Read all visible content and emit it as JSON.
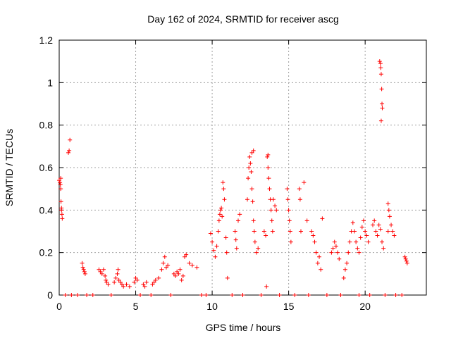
{
  "chart_data": {
    "type": "scatter",
    "title": "Day 162 of 2024, SRMTID for receiver ascg",
    "xlabel": "GPS time / hours",
    "ylabel": "SRMTID / TECUs",
    "xlim": [
      0,
      24
    ],
    "ylim": [
      0,
      1.2
    ],
    "xticks": [
      "0",
      "5",
      "10",
      "15",
      "20"
    ],
    "yticks": [
      "0",
      "0.2",
      "0.4",
      "0.6",
      "0.8",
      "1",
      "1.2"
    ],
    "grid": true,
    "marker": "+",
    "color": "#ff0000",
    "series": [
      {
        "name": "SRMTID",
        "points": [
          [
            0.0,
            0.54
          ],
          [
            0.05,
            0.53
          ],
          [
            0.08,
            0.52
          ],
          [
            0.1,
            0.5
          ],
          [
            0.12,
            0.44
          ],
          [
            0.15,
            0.4
          ],
          [
            0.18,
            0.38
          ],
          [
            0.2,
            0.36
          ],
          [
            0.1,
            0.55
          ],
          [
            0.15,
            0.41
          ],
          [
            0.6,
            0.67
          ],
          [
            0.65,
            0.68
          ],
          [
            0.7,
            0.73
          ],
          [
            1.5,
            0.15
          ],
          [
            1.55,
            0.13
          ],
          [
            1.6,
            0.12
          ],
          [
            1.65,
            0.11
          ],
          [
            1.7,
            0.1
          ],
          [
            2.6,
            0.12
          ],
          [
            2.7,
            0.11
          ],
          [
            2.8,
            0.1
          ],
          [
            2.9,
            0.12
          ],
          [
            3.0,
            0.09
          ],
          [
            3.05,
            0.07
          ],
          [
            3.1,
            0.06
          ],
          [
            3.2,
            0.05
          ],
          [
            3.6,
            0.06
          ],
          [
            3.7,
            0.08
          ],
          [
            3.8,
            0.1
          ],
          [
            3.85,
            0.12
          ],
          [
            3.9,
            0.07
          ],
          [
            4.0,
            0.06
          ],
          [
            4.1,
            0.05
          ],
          [
            4.2,
            0.04
          ],
          [
            4.4,
            0.05
          ],
          [
            4.6,
            0.04
          ],
          [
            4.9,
            0.06
          ],
          [
            5.0,
            0.08
          ],
          [
            5.1,
            0.07
          ],
          [
            5.5,
            0.05
          ],
          [
            5.6,
            0.04
          ],
          [
            5.7,
            0.06
          ],
          [
            6.1,
            0.05
          ],
          [
            6.2,
            0.06
          ],
          [
            6.3,
            0.07
          ],
          [
            6.5,
            0.08
          ],
          [
            6.7,
            0.12
          ],
          [
            6.8,
            0.15
          ],
          [
            6.9,
            0.18
          ],
          [
            7.0,
            0.13
          ],
          [
            7.1,
            0.14
          ],
          [
            7.5,
            0.1
          ],
          [
            7.6,
            0.09
          ],
          [
            7.7,
            0.11
          ],
          [
            7.8,
            0.1
          ],
          [
            7.9,
            0.12
          ],
          [
            8.0,
            0.07
          ],
          [
            8.1,
            0.09
          ],
          [
            8.2,
            0.18
          ],
          [
            8.3,
            0.19
          ],
          [
            8.5,
            0.15
          ],
          [
            8.7,
            0.14
          ],
          [
            9.0,
            0.13
          ],
          [
            9.9,
            0.29
          ],
          [
            10.0,
            0.25
          ],
          [
            10.1,
            0.21
          ],
          [
            10.2,
            0.18
          ],
          [
            10.3,
            0.23
          ],
          [
            10.4,
            0.3
          ],
          [
            10.45,
            0.35
          ],
          [
            10.5,
            0.38
          ],
          [
            10.55,
            0.4
          ],
          [
            10.6,
            0.41
          ],
          [
            10.65,
            0.37
          ],
          [
            10.7,
            0.53
          ],
          [
            10.75,
            0.5
          ],
          [
            10.8,
            0.45
          ],
          [
            10.9,
            0.27
          ],
          [
            10.95,
            0.2
          ],
          [
            11.0,
            0.08
          ],
          [
            11.5,
            0.3
          ],
          [
            11.55,
            0.26
          ],
          [
            11.6,
            0.22
          ],
          [
            11.7,
            0.35
          ],
          [
            11.8,
            0.38
          ],
          [
            12.3,
            0.45
          ],
          [
            12.35,
            0.55
          ],
          [
            12.4,
            0.6
          ],
          [
            12.45,
            0.65
          ],
          [
            12.5,
            0.62
          ],
          [
            12.55,
            0.58
          ],
          [
            12.6,
            0.5
          ],
          [
            12.65,
            0.44
          ],
          [
            12.7,
            0.35
          ],
          [
            12.75,
            0.3
          ],
          [
            12.8,
            0.25
          ],
          [
            12.9,
            0.2
          ],
          [
            13.0,
            0.22
          ],
          [
            12.7,
            0.68
          ],
          [
            12.6,
            0.67
          ],
          [
            13.4,
            0.3
          ],
          [
            13.5,
            0.28
          ],
          [
            13.6,
            0.65
          ],
          [
            13.65,
            0.6
          ],
          [
            13.7,
            0.55
          ],
          [
            13.75,
            0.5
          ],
          [
            13.8,
            0.45
          ],
          [
            13.85,
            0.4
          ],
          [
            13.9,
            0.35
          ],
          [
            13.95,
            0.3
          ],
          [
            14.0,
            0.45
          ],
          [
            14.1,
            0.42
          ],
          [
            14.2,
            0.4
          ],
          [
            13.55,
            0.04
          ],
          [
            13.65,
            0.66
          ],
          [
            14.9,
            0.5
          ],
          [
            14.95,
            0.45
          ],
          [
            15.0,
            0.4
          ],
          [
            15.05,
            0.35
          ],
          [
            15.1,
            0.3
          ],
          [
            15.15,
            0.25
          ],
          [
            15.7,
            0.5
          ],
          [
            15.75,
            0.45
          ],
          [
            15.8,
            0.3
          ],
          [
            16.0,
            0.53
          ],
          [
            16.2,
            0.35
          ],
          [
            16.5,
            0.3
          ],
          [
            16.6,
            0.28
          ],
          [
            16.7,
            0.25
          ],
          [
            16.8,
            0.2
          ],
          [
            16.9,
            0.15
          ],
          [
            17.0,
            0.18
          ],
          [
            17.1,
            0.12
          ],
          [
            17.2,
            0.36
          ],
          [
            17.8,
            0.2
          ],
          [
            17.9,
            0.22
          ],
          [
            18.0,
            0.25
          ],
          [
            18.1,
            0.23
          ],
          [
            18.2,
            0.2
          ],
          [
            18.3,
            0.17
          ],
          [
            18.6,
            0.08
          ],
          [
            18.7,
            0.12
          ],
          [
            18.8,
            0.15
          ],
          [
            18.9,
            0.2
          ],
          [
            19.0,
            0.25
          ],
          [
            19.1,
            0.3
          ],
          [
            19.2,
            0.34
          ],
          [
            19.3,
            0.3
          ],
          [
            19.4,
            0.25
          ],
          [
            19.5,
            0.22
          ],
          [
            19.6,
            0.2
          ],
          [
            19.7,
            0.27
          ],
          [
            19.8,
            0.32
          ],
          [
            19.9,
            0.35
          ],
          [
            20.0,
            0.3
          ],
          [
            20.1,
            0.28
          ],
          [
            20.2,
            0.25
          ],
          [
            20.5,
            0.33
          ],
          [
            20.6,
            0.35
          ],
          [
            20.7,
            0.3
          ],
          [
            20.8,
            0.28
          ],
          [
            20.9,
            0.33
          ],
          [
            21.0,
            0.31
          ],
          [
            21.1,
            0.25
          ],
          [
            21.2,
            0.22
          ],
          [
            20.95,
            1.1
          ],
          [
            21.0,
            1.09
          ],
          [
            21.02,
            1.07
          ],
          [
            21.05,
            1.04
          ],
          [
            21.08,
            0.97
          ],
          [
            21.1,
            0.9
          ],
          [
            21.12,
            0.88
          ],
          [
            21.05,
            0.82
          ],
          [
            21.5,
            0.43
          ],
          [
            21.55,
            0.4
          ],
          [
            21.6,
            0.37
          ],
          [
            21.7,
            0.33
          ],
          [
            21.8,
            0.3
          ],
          [
            21.9,
            0.28
          ],
          [
            21.5,
            0.3
          ],
          [
            22.6,
            0.18
          ],
          [
            22.65,
            0.17
          ],
          [
            22.7,
            0.16
          ],
          [
            22.75,
            0.15
          ],
          [
            0.4,
            0
          ],
          [
            0.8,
            0
          ],
          [
            1.2,
            0
          ],
          [
            1.8,
            0
          ],
          [
            2.2,
            0
          ],
          [
            3.4,
            0
          ],
          [
            5.3,
            0
          ],
          [
            6.0,
            0
          ],
          [
            7.3,
            0
          ],
          [
            9.3,
            0
          ],
          [
            9.6,
            0
          ],
          [
            11.3,
            0
          ],
          [
            12.0,
            0
          ],
          [
            13.2,
            0
          ],
          [
            14.4,
            0
          ],
          [
            15.4,
            0
          ],
          [
            16.3,
            0
          ],
          [
            17.5,
            0
          ],
          [
            18.4,
            0
          ],
          [
            19.6,
            0
          ],
          [
            20.3,
            0
          ],
          [
            21.3,
            0
          ],
          [
            22.0,
            0
          ],
          [
            22.4,
            0
          ]
        ]
      }
    ]
  }
}
